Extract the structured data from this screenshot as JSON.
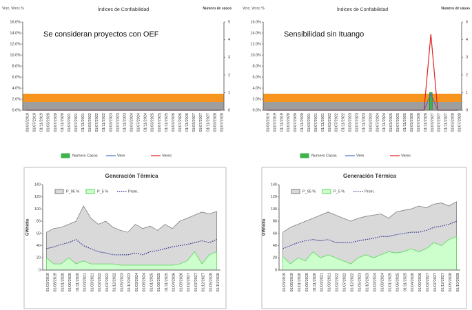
{
  "chart_data": [
    {
      "type": "line",
      "title": "Índices de Confiabilidad",
      "annotation": "Se consideran proyectos con OEF",
      "ylabel": "Vere, Verec %",
      "y2label": "Numero de casos",
      "legend": "bottom",
      "categories": [
        "01/03/2019",
        "01/07/2019",
        "01/11/2019",
        "01/03/2020",
        "01/07/2020",
        "01/11/2020",
        "01/03/2021",
        "01/07/2021",
        "01/11/2021",
        "01/03/2022",
        "01/07/2022",
        "01/11/2022",
        "01/03/2023",
        "01/07/2023",
        "01/11/2023",
        "01/03/2024",
        "01/07/2024",
        "01/11/2024",
        "01/03/2025",
        "01/07/2025",
        "01/11/2025",
        "01/03/2026",
        "01/07/2026",
        "01/11/2026",
        "01/03/2027",
        "01/07/2027",
        "01/11/2027",
        "01/03/2028",
        "01/07/2028"
      ],
      "ylim": [
        0,
        16
      ],
      "yticks": [
        {
          "value": 0,
          "label": "0.0%"
        },
        {
          "value": 2,
          "label": "2.0%"
        },
        {
          "value": 4,
          "label": "4.0%"
        },
        {
          "value": 6,
          "label": "6.0%"
        },
        {
          "value": 8,
          "label": "8.0%"
        },
        {
          "value": 10,
          "label": "10.0%"
        },
        {
          "value": 12,
          "label": "12.0%"
        },
        {
          "value": 14,
          "label": "14.0%"
        },
        {
          "value": 16,
          "label": "16.0%"
        }
      ],
      "y2lim": [
        0,
        5
      ],
      "y2ticks": [
        0,
        1,
        2,
        3,
        4,
        5
      ],
      "bands": [
        {
          "from": 0,
          "to": 1.5,
          "color": "#9e9e9e"
        },
        {
          "from": 1.5,
          "to": 3,
          "color": "#f7941d"
        }
      ],
      "series": [
        {
          "name": "Numero Casos",
          "kind": "bar",
          "axis": "y2",
          "color": "#3cb44b",
          "values": [
            0,
            0,
            0,
            0,
            0,
            0,
            0,
            0,
            0,
            0,
            0,
            0,
            0,
            0,
            0,
            0,
            0,
            0,
            0,
            0,
            0,
            0,
            0,
            0,
            0,
            0,
            0,
            0,
            0
          ]
        },
        {
          "name": "Vere",
          "kind": "line",
          "color": "#4472c4",
          "values": [
            0,
            0,
            0,
            0,
            0,
            0,
            0,
            0,
            0,
            0,
            0,
            0,
            0,
            0,
            0,
            0,
            0,
            0,
            0,
            0,
            0,
            0,
            0,
            0,
            0,
            0,
            0,
            0,
            0
          ]
        },
        {
          "name": "Verec",
          "kind": "line",
          "color": "#e02020",
          "values": [
            0,
            0,
            0,
            0,
            0,
            0,
            0,
            0,
            0,
            0,
            0,
            0,
            0,
            0,
            0,
            0,
            0,
            0,
            0,
            0,
            0,
            0,
            0,
            0,
            0,
            0,
            0,
            0,
            0
          ]
        }
      ]
    },
    {
      "type": "line",
      "title": "Índices de Confiabilidad",
      "annotation": "Sensibilidad sin Ituango",
      "ylabel": "Vere, Verec %",
      "y2label": "Numero de casos",
      "legend": "bottom",
      "categories": [
        "01/03/2019",
        "01/07/2019",
        "01/11/2019",
        "01/03/2020",
        "01/07/2020",
        "01/11/2020",
        "01/03/2021",
        "01/07/2021",
        "01/11/2021",
        "01/03/2022",
        "01/07/2022",
        "01/11/2022",
        "01/03/2023",
        "01/07/2023",
        "01/11/2023",
        "01/03/2024",
        "01/07/2024",
        "01/11/2024",
        "01/03/2025",
        "01/07/2025",
        "01/11/2025",
        "01/03/2026",
        "01/07/2026",
        "01/11/2026",
        "01/03/2027",
        "01/07/2027",
        "01/11/2027",
        "01/03/2028",
        "01/07/2028"
      ],
      "ylim": [
        0,
        16
      ],
      "yticks": [
        {
          "value": 0,
          "label": "0.0%"
        },
        {
          "value": 2,
          "label": "2.0%"
        },
        {
          "value": 4,
          "label": "4.0%"
        },
        {
          "value": 6,
          "label": "6.0%"
        },
        {
          "value": 8,
          "label": "8.0%"
        },
        {
          "value": 10,
          "label": "10.0%"
        },
        {
          "value": 12,
          "label": "12.0%"
        },
        {
          "value": 14,
          "label": "14.0%"
        },
        {
          "value": 16,
          "label": "16.0%"
        }
      ],
      "y2lim": [
        0,
        5
      ],
      "y2ticks": [
        0,
        1,
        2,
        3,
        4,
        5
      ],
      "bands": [
        {
          "from": 0,
          "to": 1.5,
          "color": "#9e9e9e"
        },
        {
          "from": 1.5,
          "to": 3,
          "color": "#f7941d"
        }
      ],
      "series": [
        {
          "name": "Numero Casos",
          "kind": "bar",
          "axis": "y2",
          "color": "#3cb44b",
          "values": [
            0,
            0,
            0,
            0,
            0,
            0,
            0,
            0,
            0,
            0,
            0,
            0,
            0,
            0,
            0,
            0,
            0,
            0,
            0,
            0,
            0,
            0,
            0,
            0,
            1,
            0,
            0,
            0,
            0
          ]
        },
        {
          "name": "Vere",
          "kind": "line",
          "color": "#4472c4",
          "values": [
            0,
            0,
            0,
            0,
            0,
            0,
            0,
            0,
            0,
            0,
            0,
            0,
            0,
            0,
            0,
            0,
            0,
            0,
            0,
            0,
            0,
            0,
            0,
            0,
            3,
            0,
            0,
            0,
            0
          ]
        },
        {
          "name": "Verec",
          "kind": "line",
          "color": "#e02020",
          "values": [
            0,
            0,
            0,
            0,
            0,
            0,
            0,
            0,
            0,
            0,
            0,
            0,
            0,
            0,
            0,
            0,
            0,
            0,
            0,
            0,
            0,
            0,
            0,
            0,
            13.8,
            0,
            0,
            0,
            0
          ]
        }
      ]
    },
    {
      "type": "area",
      "title": "Generación Térmica",
      "ylabel": "GWh/día",
      "legend": "top",
      "categories": [
        "01/03/2019",
        "01/08/2019",
        "01/01/2020",
        "01/06/2020",
        "01/11/2020",
        "01/04/2021",
        "01/09/2021",
        "01/02/2022",
        "01/07/2022",
        "01/12/2022",
        "01/05/2023",
        "01/10/2023",
        "01/03/2024",
        "01/08/2024",
        "01/01/2025",
        "01/06/2025",
        "01/11/2025",
        "01/04/2026",
        "01/09/2026",
        "01/02/2027",
        "01/07/2027",
        "01/12/2027",
        "01/05/2028",
        "01/10/2028"
      ],
      "ylim": [
        0,
        140
      ],
      "yticks": [
        0,
        20,
        40,
        60,
        80,
        100,
        120,
        140
      ],
      "series": [
        {
          "name": "P_95 %",
          "kind": "area",
          "color": "#d9d9d9",
          "stroke": "#7f7f7f",
          "values": [
            62,
            68,
            70,
            75,
            80,
            105,
            85,
            75,
            80,
            70,
            65,
            62,
            75,
            68,
            72,
            65,
            75,
            68,
            80,
            85,
            90,
            95,
            92,
            96
          ]
        },
        {
          "name": "P_5 %",
          "kind": "area",
          "color": "#ccffcc",
          "stroke": "#5bd65b",
          "values": [
            20,
            10,
            10,
            20,
            10,
            15,
            10,
            10,
            10,
            10,
            8,
            8,
            8,
            8,
            8,
            8,
            8,
            8,
            10,
            15,
            30,
            10,
            25,
            30
          ]
        },
        {
          "name": "Prom.",
          "kind": "line",
          "style": "dotted",
          "color": "#2e3192",
          "values": [
            35,
            38,
            42,
            45,
            50,
            40,
            35,
            30,
            28,
            25,
            25,
            25,
            28,
            25,
            30,
            32,
            35,
            38,
            40,
            42,
            45,
            48,
            45,
            50
          ]
        }
      ]
    },
    {
      "type": "area",
      "title": "Generación Térmica",
      "ylabel": "GWh/día",
      "legend": "top",
      "categories": [
        "01/03/2019",
        "01/08/2019",
        "01/01/2020",
        "01/06/2020",
        "01/11/2020",
        "01/04/2021",
        "01/09/2021",
        "01/02/2022",
        "01/07/2022",
        "01/12/2022",
        "01/05/2023",
        "01/10/2023",
        "01/03/2024",
        "01/08/2024",
        "01/01/2025",
        "01/06/2025",
        "01/11/2025",
        "01/04/2026",
        "01/09/2026",
        "01/02/2027",
        "01/07/2027",
        "01/12/2027",
        "01/05/2028",
        "01/10/2028"
      ],
      "ylim": [
        0,
        140
      ],
      "yticks": [
        0,
        20,
        40,
        60,
        80,
        100,
        120,
        140
      ],
      "series": [
        {
          "name": "P_95 %",
          "kind": "area",
          "color": "#d9d9d9",
          "stroke": "#7f7f7f",
          "values": [
            62,
            70,
            75,
            80,
            85,
            90,
            95,
            90,
            85,
            80,
            85,
            88,
            90,
            92,
            85,
            95,
            98,
            100,
            105,
            102,
            108,
            110,
            105,
            112
          ]
        },
        {
          "name": "P_5 %",
          "kind": "area",
          "color": "#ccffcc",
          "stroke": "#5bd65b",
          "values": [
            22,
            10,
            20,
            15,
            30,
            20,
            25,
            20,
            15,
            10,
            20,
            25,
            20,
            25,
            30,
            28,
            30,
            35,
            30,
            35,
            45,
            40,
            50,
            55
          ]
        },
        {
          "name": "Prom.",
          "kind": "line",
          "style": "dotted",
          "color": "#2e3192",
          "values": [
            35,
            40,
            45,
            48,
            50,
            48,
            50,
            45,
            45,
            45,
            48,
            50,
            52,
            55,
            55,
            58,
            60,
            62,
            62,
            65,
            70,
            72,
            75,
            80
          ]
        }
      ]
    }
  ]
}
